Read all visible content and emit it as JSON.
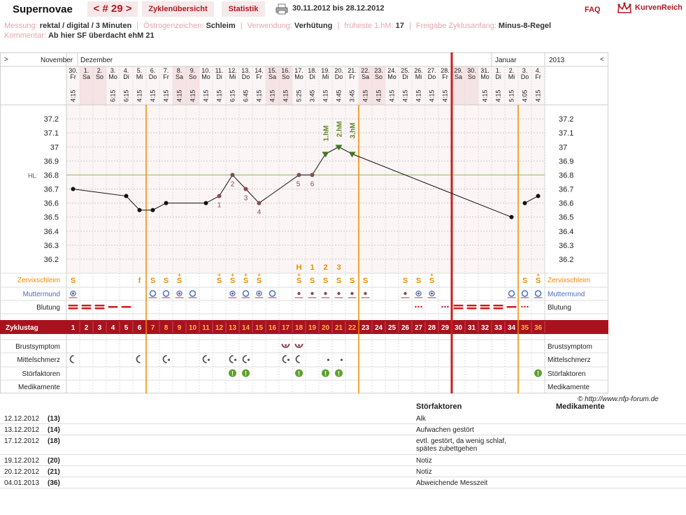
{
  "app": {
    "title": "Supernovae",
    "cycle_label": "< # 29 >",
    "tabs": [
      "Zyklenübersicht",
      "Statistik"
    ],
    "date_range": "30.11.2012 bis 28.12.2012",
    "faq": "FAQ",
    "brand": "KurvenReich"
  },
  "meta": {
    "messung_label": "Messung:",
    "messung": "rektal / digital / 3 Minuten",
    "oestrogen_label": "Östrogenzeichen:",
    "oestrogen": "Schleim",
    "verwendung_label": "Verwendung:",
    "verwendung": "Verhütung",
    "frueheste_label": "früheste 1.hM:",
    "frueheste": "17",
    "freigabe_label": "Freigabe Zyklusanfang:",
    "freigabe": "Minus-8-Regel",
    "kommentar_label": "Kommentar:",
    "kommentar": "Ab hier SF überdacht ehM 21"
  },
  "chart_data": {
    "type": "line",
    "nav_left": ">",
    "nav_right": "<",
    "year": "2013",
    "months": [
      {
        "label": "November",
        "day": 1
      },
      {
        "label": "Dezember",
        "day": 1
      },
      {
        "label": "Januar",
        "day": 33
      }
    ],
    "days": [
      {
        "date": "30.",
        "wd": "Fr",
        "time": "4:15"
      },
      {
        "date": "1.",
        "wd": "Sa",
        "time": ""
      },
      {
        "date": "2.",
        "wd": "So",
        "time": ""
      },
      {
        "date": "3.",
        "wd": "Mo",
        "time": "6:15"
      },
      {
        "date": "4.",
        "wd": "Di",
        "time": "6:15"
      },
      {
        "date": "5.",
        "wd": "Mi",
        "time": "4:15"
      },
      {
        "date": "6.",
        "wd": "Do",
        "time": "4:15"
      },
      {
        "date": "7.",
        "wd": "Fr",
        "time": "4:15"
      },
      {
        "date": "8.",
        "wd": "Sa",
        "time": "4:15"
      },
      {
        "date": "9.",
        "wd": "So",
        "time": "4:15"
      },
      {
        "date": "10.",
        "wd": "Mo",
        "time": "4:15"
      },
      {
        "date": "11.",
        "wd": "Di",
        "time": "4:15"
      },
      {
        "date": "12.",
        "wd": "Mi",
        "time": "6:15"
      },
      {
        "date": "13.",
        "wd": "Do",
        "time": "6:45"
      },
      {
        "date": "14.",
        "wd": "Fr",
        "time": "4:15"
      },
      {
        "date": "15.",
        "wd": "Sa",
        "time": "4:15"
      },
      {
        "date": "16.",
        "wd": "So",
        "time": "4:15"
      },
      {
        "date": "17.",
        "wd": "Mo",
        "time": "5:25"
      },
      {
        "date": "18.",
        "wd": "Di",
        "time": "3:45"
      },
      {
        "date": "19.",
        "wd": "Mi",
        "time": "4:15"
      },
      {
        "date": "20.",
        "wd": "Do",
        "time": "4:45"
      },
      {
        "date": "21.",
        "wd": "Fr",
        "time": "3:45"
      },
      {
        "date": "22.",
        "wd": "Sa",
        "time": "4:15"
      },
      {
        "date": "23.",
        "wd": "So",
        "time": "4:15"
      },
      {
        "date": "24.",
        "wd": "Mo",
        "time": "4:15"
      },
      {
        "date": "25.",
        "wd": "Di",
        "time": "4:15"
      },
      {
        "date": "26.",
        "wd": "Mi",
        "time": "4:15"
      },
      {
        "date": "27.",
        "wd": "Do",
        "time": "4:15"
      },
      {
        "date": "28.",
        "wd": "Fr",
        "time": "4:15"
      },
      {
        "date": "29.",
        "wd": "Sa",
        "time": ""
      },
      {
        "date": "30.",
        "wd": "So",
        "time": ""
      },
      {
        "date": "31.",
        "wd": "Mo",
        "time": "4:15"
      },
      {
        "date": "1.",
        "wd": "Di",
        "time": "4:15"
      },
      {
        "date": "2.",
        "wd": "Mi",
        "time": "5:15"
      },
      {
        "date": "3.",
        "wd": "Do",
        "time": "4:05"
      },
      {
        "date": "4.",
        "wd": "Fr",
        "time": "4:15"
      }
    ],
    "weekend_days": [
      2,
      3,
      9,
      10,
      16,
      17,
      23,
      24,
      30,
      31
    ],
    "y_ticks": [
      "37.2",
      "37.1",
      "37",
      "36.9",
      "36.8",
      "36.7",
      "36.6",
      "36.5",
      "36.4",
      "36.3",
      "36.2"
    ],
    "ylim": [
      36.1,
      37.3
    ],
    "hl_label": "HL:",
    "hl_value": 36.8,
    "temps_segment1": [
      {
        "day": 1,
        "v": 36.7
      },
      {
        "day": 5,
        "v": 36.65
      },
      {
        "day": 6,
        "v": 36.55
      },
      {
        "day": 7,
        "v": 36.55
      },
      {
        "day": 8,
        "v": 36.6
      },
      {
        "day": 11,
        "v": 36.6
      },
      {
        "day": 12,
        "v": 36.65
      },
      {
        "day": 13,
        "v": 36.8
      },
      {
        "day": 14,
        "v": 36.7
      },
      {
        "day": 15,
        "v": 36.6
      },
      {
        "day": 18,
        "v": 36.8
      },
      {
        "day": 19,
        "v": 36.8
      },
      {
        "day": 20,
        "v": 36.95
      },
      {
        "day": 21,
        "v": 37.0
      },
      {
        "day": 22,
        "v": 36.95
      },
      {
        "day": 34,
        "v": 36.5
      }
    ],
    "temps_segment2": [
      {
        "day": 35,
        "v": 36.6
      },
      {
        "day": 36,
        "v": 36.65
      }
    ],
    "low_labels": [
      {
        "day": 12,
        "v": 36.65,
        "label": "1"
      },
      {
        "day": 13,
        "v": 36.8,
        "label": "2"
      },
      {
        "day": 14,
        "v": 36.7,
        "label": "3"
      },
      {
        "day": 15,
        "v": 36.6,
        "label": "4"
      },
      {
        "day": 18,
        "v": 36.8,
        "label": "5"
      },
      {
        "day": 19,
        "v": 36.8,
        "label": "6"
      }
    ],
    "high_labels": [
      {
        "day": 20,
        "label": "1.hM"
      },
      {
        "day": 21,
        "label": "2.hM"
      },
      {
        "day": 22,
        "label": "3.hM"
      }
    ],
    "orange_lines": [
      6.5,
      22.5,
      34.5
    ],
    "red_line": 29.5,
    "peak_markers": [
      {
        "day": 18,
        "label": "H"
      },
      {
        "day": 19,
        "label": "1"
      },
      {
        "day": 20,
        "label": "2"
      },
      {
        "day": 21,
        "label": "3"
      }
    ],
    "row_labels": {
      "zervix": "Zervixschleim",
      "muttermund": "Muttermund",
      "blutung": "Blutung",
      "zyklustag": "Zyklustag",
      "brust": "Brustsymptom",
      "mittel": "Mittelschmerz",
      "stoer": "Störfaktoren",
      "medi": "Medikamente"
    },
    "zervix": [
      {
        "day": 1,
        "s": "S"
      },
      {
        "day": 6,
        "s": "f"
      },
      {
        "day": 7,
        "s": "S"
      },
      {
        "day": 8,
        "s": "S"
      },
      {
        "day": 9,
        "s": "S+"
      },
      {
        "day": 12,
        "s": "S+"
      },
      {
        "day": 13,
        "s": "S+"
      },
      {
        "day": 14,
        "s": "S+"
      },
      {
        "day": 15,
        "s": "S+"
      },
      {
        "day": 18,
        "s": "S+"
      },
      {
        "day": 19,
        "s": "S"
      },
      {
        "day": 20,
        "s": "S"
      },
      {
        "day": 21,
        "s": "S"
      },
      {
        "day": 22,
        "s": "S"
      },
      {
        "day": 23,
        "s": "S"
      },
      {
        "day": 26,
        "s": "S"
      },
      {
        "day": 27,
        "s": "S"
      },
      {
        "day": 28,
        "s": "S+"
      },
      {
        "day": 35,
        "s": "S"
      },
      {
        "day": 36,
        "s": "S+"
      }
    ],
    "muttermund": [
      {
        "day": 1,
        "t": "half"
      },
      {
        "day": 7,
        "t": "open"
      },
      {
        "day": 8,
        "t": "open"
      },
      {
        "day": 9,
        "t": "half"
      },
      {
        "day": 10,
        "t": "open"
      },
      {
        "day": 13,
        "t": "half"
      },
      {
        "day": 14,
        "t": "open"
      },
      {
        "day": 15,
        "t": "half"
      },
      {
        "day": 16,
        "t": "open"
      },
      {
        "day": 18,
        "t": "dot"
      },
      {
        "day": 19,
        "t": "dot"
      },
      {
        "day": 20,
        "t": "dot"
      },
      {
        "day": 21,
        "t": "dot"
      },
      {
        "day": 22,
        "t": "dot"
      },
      {
        "day": 23,
        "t": "dot"
      },
      {
        "day": 26,
        "t": "dot"
      },
      {
        "day": 27,
        "t": "half"
      },
      {
        "day": 28,
        "t": "half"
      },
      {
        "day": 34,
        "t": "open"
      },
      {
        "day": 35,
        "t": "open"
      },
      {
        "day": 36,
        "t": "open"
      }
    ],
    "blutung": [
      {
        "day": 1,
        "t": "strong"
      },
      {
        "day": 2,
        "t": "strong"
      },
      {
        "day": 3,
        "t": "strong"
      },
      {
        "day": 4,
        "t": "medium"
      },
      {
        "day": 5,
        "t": "medium"
      },
      {
        "day": 27,
        "t": "spot"
      },
      {
        "day": 29,
        "t": "spot"
      },
      {
        "day": 30,
        "t": "strong"
      },
      {
        "day": 31,
        "t": "strong"
      },
      {
        "day": 32,
        "t": "strong"
      },
      {
        "day": 33,
        "t": "strong"
      },
      {
        "day": 34,
        "t": "medium"
      },
      {
        "day": 35,
        "t": "spot"
      }
    ],
    "cycle_days": [
      "1",
      "2",
      "3",
      "4",
      "5",
      "6",
      "7",
      "8",
      "9",
      "10",
      "11",
      "12",
      "13",
      "14",
      "15",
      "16",
      "17",
      "18",
      "19",
      "20",
      "21",
      "22",
      "23",
      "24",
      "25",
      "26",
      "27",
      "28",
      "29",
      "30",
      "31",
      "32",
      "33",
      "34",
      "35",
      "36"
    ],
    "brust": [
      17,
      18
    ],
    "mittel": [
      {
        "day": 1,
        "t": "crescent"
      },
      {
        "day": 6,
        "t": "crescent"
      },
      {
        "day": 8,
        "t": "crescent-dot"
      },
      {
        "day": 11,
        "t": "crescent-dot"
      },
      {
        "day": 13,
        "t": "crescent-dot"
      },
      {
        "day": 14,
        "t": "crescent-dot"
      },
      {
        "day": 17,
        "t": "crescent-dot"
      },
      {
        "day": 18,
        "t": "crescent"
      },
      {
        "day": 20,
        "t": "dot"
      },
      {
        "day": 21,
        "t": "dot"
      }
    ],
    "stoer": [
      13,
      14,
      18,
      20,
      21,
      36
    ],
    "colors": {
      "accent": "#a8121f",
      "orange": "#f08a00",
      "zervix": "#f08a00",
      "muttermund": "#4a6bc8",
      "temp_label": "#8b4a52",
      "hm_label": "#5a8a22",
      "grid": "#bbbbbb",
      "weekend": "#f5e3e5"
    }
  },
  "copyright": "© http://www.nfp-forum.de",
  "notes": {
    "headers": [
      "Störfaktoren",
      "Medikamente"
    ],
    "rows": [
      {
        "date": "12.12.2012",
        "num": "(13)",
        "text": "Alk"
      },
      {
        "date": "13.12.2012",
        "num": "(14)",
        "text": "Aufwachen gestört"
      },
      {
        "date": "17.12.2012",
        "num": "(18)",
        "text": "evtl. gestört, da wenig schlaf, spätes zubettgehen"
      },
      {
        "date": "19.12.2012",
        "num": "(20)",
        "text": "Notiz"
      },
      {
        "date": "20.12.2012",
        "num": "(21)",
        "text": "Notiz"
      },
      {
        "date": "04.01.2013",
        "num": "(36)",
        "text": "Abweichende Messzeit"
      }
    ]
  }
}
